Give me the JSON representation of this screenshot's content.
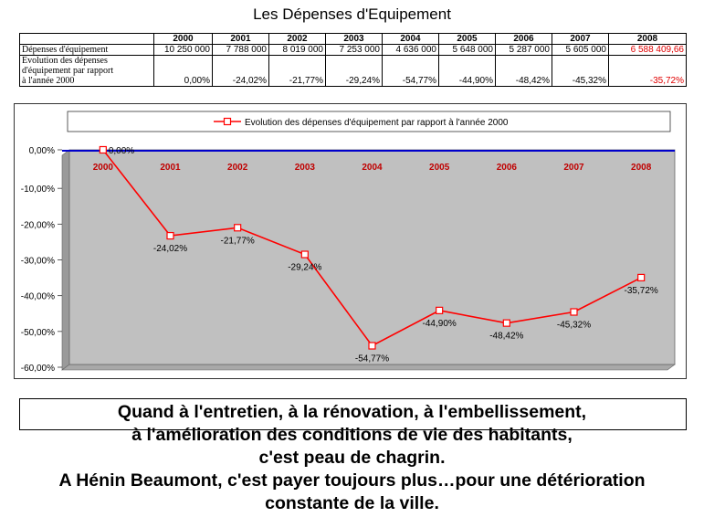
{
  "title": "Les Dépenses d'Equipement",
  "table": {
    "years": [
      "2000",
      "2001",
      "2002",
      "2003",
      "2004",
      "2005",
      "2006",
      "2007",
      "2008"
    ],
    "row1_label": "Dépenses d'équipement",
    "row1_values": [
      "10 250 000",
      "7 788 000",
      "8 019 000",
      "7 253 000",
      "4 636 000",
      "5 648 000",
      "5 287 000",
      "5 605 000",
      "6 588 409,66"
    ],
    "row2_label_lines": [
      "Evolution des dépenses",
      "d'équipement par rapport",
      "à l'année 2000"
    ],
    "row2_values": [
      "0,00%",
      "-24,02%",
      "-21,77%",
      "-29,24%",
      "-54,77%",
      "-44,90%",
      "-48,42%",
      "-45,32%",
      "-35,72%"
    ],
    "highlight_color": "#e00000"
  },
  "chart_data": {
    "type": "line",
    "categories": [
      "2000",
      "2001",
      "2002",
      "2003",
      "2004",
      "2005",
      "2006",
      "2007",
      "2008"
    ],
    "series": [
      {
        "name": "Evolution des dépenses d'équipement par rapport à l'année 2000",
        "values": [
          0.0,
          -24.02,
          -21.77,
          -29.24,
          -54.77,
          -44.9,
          -48.42,
          -45.32,
          -35.72
        ],
        "labels": [
          "0,00%",
          "-24,02%",
          "-21,77%",
          "-29,24%",
          "-54,77%",
          "-44,90%",
          "-48,42%",
          "-45,32%",
          "-35,72%"
        ],
        "color": "#ff0000"
      }
    ],
    "yticks": [
      "0,00%",
      "-10,00%",
      "-20,00%",
      "-30,00%",
      "-40,00%",
      "-50,00%",
      "-60,00%"
    ],
    "ylim": [
      -60,
      0
    ],
    "grid": false,
    "legend": "top",
    "plot_background": "#c0c0c0",
    "axis_color": "#0000cc",
    "category_label_color": "#c00000"
  },
  "caption": "Quand à l'entretien, à la rénovation, à l'embellissement,\nà l'amélioration des conditions de vie des habitants,\nc'est peau de chagrin.\nA Hénin Beaumont, c'est payer toujours plus…pour une détérioration\nconstante de la ville."
}
